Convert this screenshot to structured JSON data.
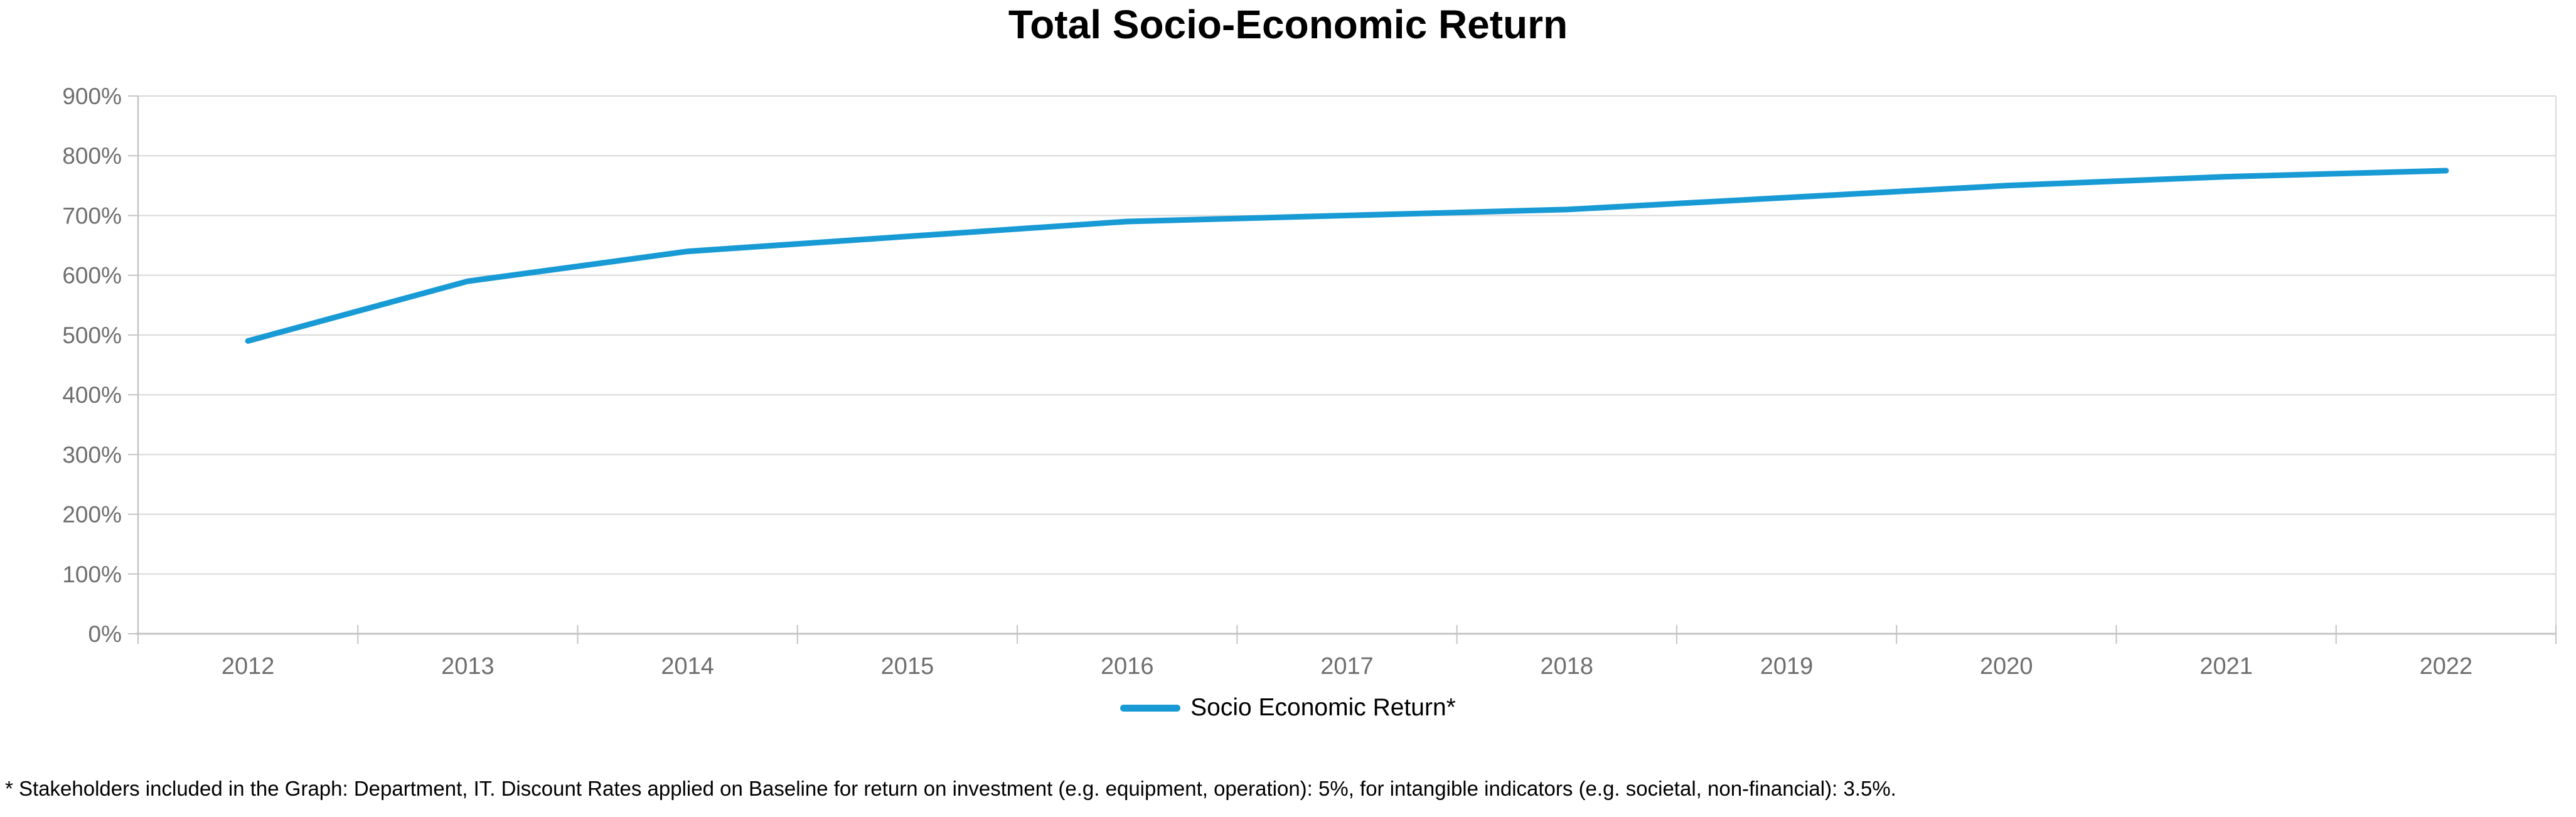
{
  "chart_title": "Total Socio-Economic Return",
  "legend": {
    "label": "Socio Economic Return*"
  },
  "footnote": "* Stakeholders included in the Graph: Department, IT. Discount Rates applied on Baseline for return on investment (e.g. equipment, operation): 5%, for intangible indicators (e.g. societal, non-financial): 3.5%.",
  "chart_data": {
    "type": "line",
    "title": "Total Socio-Economic Return",
    "categories": [
      "2012",
      "2013",
      "2014",
      "2015",
      "2016",
      "2017",
      "2018",
      "2019",
      "2020",
      "2021",
      "2022"
    ],
    "series": [
      {
        "name": "Socio Economic Return*",
        "color": "#189AD5",
        "values": [
          490,
          590,
          640,
          665,
          690,
          700,
          710,
          730,
          750,
          765,
          775
        ]
      }
    ],
    "xlabel": "",
    "ylabel": "",
    "ylim": [
      0,
      900
    ],
    "y_tick_step": 100,
    "y_tick_labels": [
      "0%",
      "100%",
      "200%",
      "300%",
      "400%",
      "500%",
      "600%",
      "700%",
      "800%",
      "900%"
    ],
    "grid": "horizontal",
    "legend_position": "bottom",
    "colors": {
      "grid": "#D9D9D9",
      "axis": "#C4C4C4",
      "tick_label": "#6E6E6E",
      "title": "#000000",
      "background": "#FFFFFF"
    }
  }
}
